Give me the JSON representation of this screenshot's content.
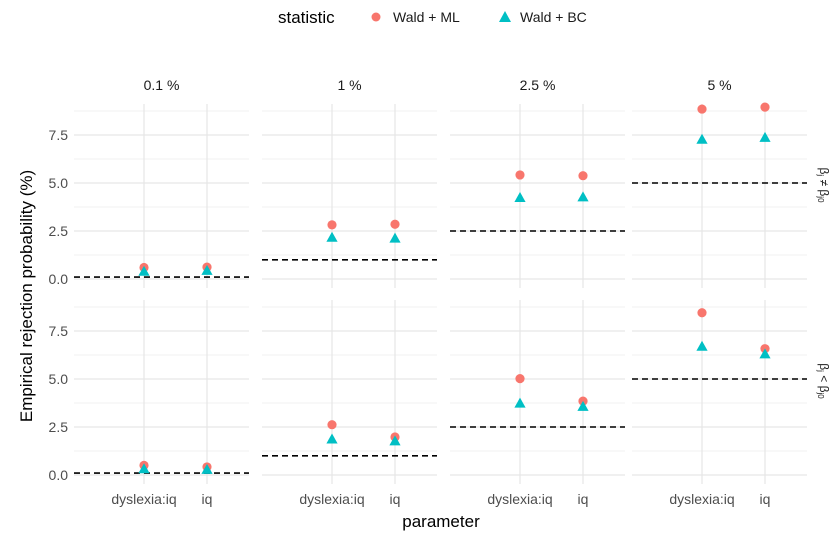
{
  "chart_data": {
    "type": "scatter",
    "legend": {
      "title": "statistic",
      "placement": "top",
      "entries": [
        {
          "name": "Wald + ML",
          "shape": "circle",
          "color": "#F8766D"
        },
        {
          "name": "Wald + BC",
          "shape": "triangle",
          "color": "#00BFC4"
        }
      ]
    },
    "xlabel": "parameter",
    "ylabel": "Empirical rejection probability (%)",
    "categories": [
      "dyslexia:iq",
      "iq"
    ],
    "yticks": [
      "0.0",
      "2.5",
      "5.0",
      "7.5"
    ],
    "ytick_values": [
      0,
      2.5,
      5,
      7.5
    ],
    "ylim": [
      -0.2,
      9.4
    ],
    "grid": true,
    "columns": [
      "0.1 %",
      "1 %",
      "2.5 %",
      "5 %"
    ],
    "nominal_levels": [
      0.1,
      1,
      2.5,
      5
    ],
    "rows": [
      {
        "label": "β_j ≠ β_j0",
        "series": [
          {
            "name": "Wald + ML",
            "values": [
              [
                0.6,
                0.62
              ],
              [
                2.82,
                2.85
              ],
              [
                5.42,
                5.38
              ],
              [
                8.85,
                8.95
              ]
            ]
          },
          {
            "name": "Wald + BC",
            "values": [
              [
                0.38,
                0.42
              ],
              [
                2.15,
                2.1
              ],
              [
                4.22,
                4.25
              ],
              [
                7.25,
                7.35
              ]
            ]
          }
        ]
      },
      {
        "label": "β_j < β_j0",
        "series": [
          {
            "name": "Wald + ML",
            "values": [
              [
                0.5,
                0.42
              ],
              [
                2.62,
                1.98
              ],
              [
                5.02,
                3.85
              ],
              [
                8.45,
                6.58
              ]
            ]
          },
          {
            "name": "Wald + BC",
            "values": [
              [
                0.3,
                0.27
              ],
              [
                1.85,
                1.75
              ],
              [
                3.72,
                3.55
              ],
              [
                6.68,
                6.28
              ]
            ]
          }
        ]
      }
    ]
  }
}
